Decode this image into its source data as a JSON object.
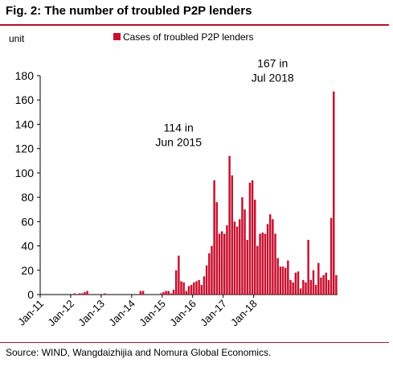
{
  "figure": {
    "title": "Fig. 2: The number of troubled P2P lenders",
    "source": "Source: WIND, Wangdaizhijia and Nomura Global Economics."
  },
  "chart_data": {
    "type": "bar",
    "title": "Fig. 2: The number of troubled P2P lenders",
    "ylabel": "unit",
    "xlabel": "",
    "ylim": [
      0,
      180
    ],
    "yticks": [
      0,
      20,
      40,
      60,
      80,
      100,
      120,
      140,
      160,
      180
    ],
    "xtick_labels": [
      "Jan-11",
      "Jan-12",
      "Jan-13",
      "Jan-14",
      "Jan-15",
      "Jan-16",
      "Jan-17",
      "Jan-18"
    ],
    "grid": false,
    "legend_position": "top-center",
    "color": "#c8102e",
    "series": [
      {
        "name": "Cases of troubled P2P lenders",
        "values": [
          0,
          0,
          0,
          0,
          0,
          0,
          0,
          0,
          0,
          0,
          0,
          0,
          0,
          1,
          0,
          1,
          1,
          2,
          3,
          0,
          0,
          0,
          0,
          0,
          0,
          1,
          0,
          0,
          0,
          0,
          0,
          0,
          0,
          0,
          0,
          0,
          0,
          0,
          0,
          3,
          3,
          0,
          0,
          0,
          0,
          0,
          0,
          1,
          2,
          3,
          3,
          1,
          4,
          20,
          32,
          11,
          10,
          3,
          7,
          8,
          10,
          11,
          12,
          8,
          15,
          24,
          34,
          40,
          94,
          76,
          50,
          52,
          50,
          57,
          114,
          98,
          60,
          56,
          62,
          80,
          70,
          45,
          92,
          94,
          78,
          40,
          50,
          51,
          50,
          58,
          66,
          62,
          50,
          30,
          23,
          23,
          22,
          28,
          12,
          10,
          18,
          19,
          5,
          12,
          10,
          45,
          12,
          20,
          8,
          26,
          14,
          16,
          18,
          12,
          63,
          167,
          16
        ]
      }
    ],
    "annotations": [
      {
        "lines": [
          "114 in",
          "Jun 2015"
        ],
        "x": "Jun-15",
        "y": 114
      },
      {
        "lines": [
          "167 in",
          "Jul 2018"
        ],
        "x": "Jul-18",
        "y": 167
      }
    ]
  }
}
